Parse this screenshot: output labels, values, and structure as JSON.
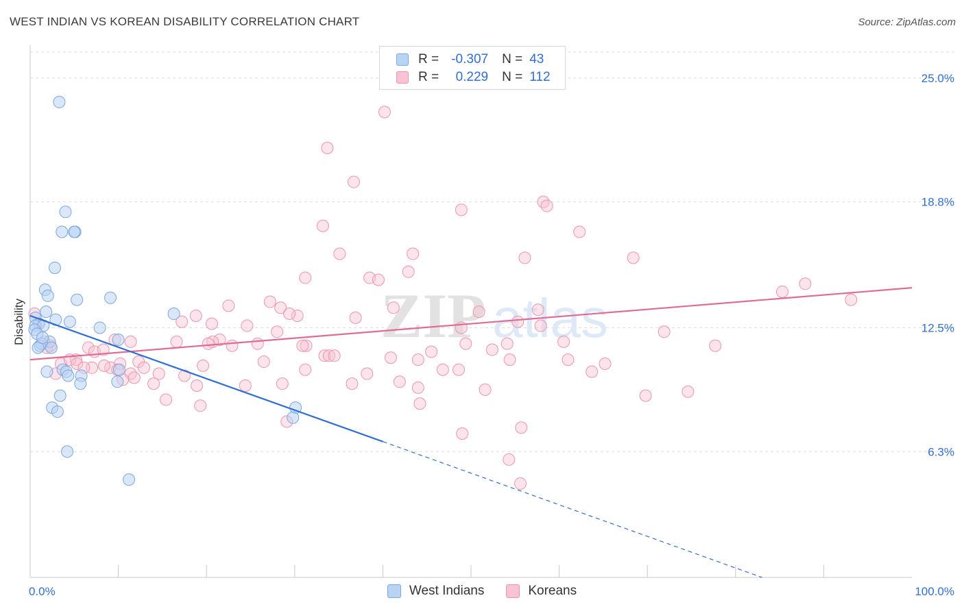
{
  "title": "WEST INDIAN VS KOREAN DISABILITY CORRELATION CHART",
  "source": "Source: ZipAtlas.com",
  "watermark": {
    "zip": "ZIP",
    "atlas": "atlas"
  },
  "legend": {
    "rows": [
      {
        "r_label": "R =",
        "r_value": "-0.307",
        "n_label": "N =",
        "n_value": "43"
      },
      {
        "r_label": "R =",
        "r_value": "0.229",
        "n_label": "N =",
        "n_value": "112"
      }
    ]
  },
  "chart_data": {
    "type": "scatter",
    "title": "WEST INDIAN VS KOREAN DISABILITY CORRELATION CHART",
    "xlabel": "",
    "ylabel": "Disability",
    "xlim": [
      0,
      100
    ],
    "ylim": [
      0,
      26.3
    ],
    "x_tick_labels": [
      "0.0%",
      "100.0%"
    ],
    "y_ticks": [
      6.3,
      12.5,
      18.8,
      25.0
    ],
    "y_tick_labels": [
      "6.3%",
      "12.5%",
      "18.8%",
      "25.0%"
    ],
    "grid": true,
    "legend_position": "bottom-center",
    "colors": {
      "west_indians": "#7aa7e0",
      "koreans": "#ee94b1",
      "west_indians_line": "#2f6fd0",
      "koreans_line": "#e06c95",
      "tick_label": "#2f6fd0"
    },
    "series": [
      {
        "name": "West Indians",
        "r": -0.307,
        "n": 43,
        "trend": {
          "x0": 0,
          "y0": 13.1,
          "x1": 40,
          "y1": 6.8,
          "dashed_to": {
            "x": 83,
            "y": 0
          }
        },
        "points": [
          [
            3.3,
            23.8
          ],
          [
            4.0,
            18.3
          ],
          [
            5.1,
            17.3
          ],
          [
            5.0,
            17.3
          ],
          [
            3.6,
            17.3
          ],
          [
            2.8,
            15.5
          ],
          [
            1.7,
            14.4
          ],
          [
            2.0,
            14.1
          ],
          [
            5.3,
            13.9
          ],
          [
            9.1,
            14.0
          ],
          [
            1.8,
            13.3
          ],
          [
            16.3,
            13.2
          ],
          [
            0.6,
            13.0
          ],
          [
            2.9,
            12.9
          ],
          [
            4.5,
            12.8
          ],
          [
            1.0,
            12.7
          ],
          [
            0.6,
            12.6
          ],
          [
            1.5,
            12.6
          ],
          [
            0.5,
            12.4
          ],
          [
            0.8,
            12.2
          ],
          [
            7.9,
            12.5
          ],
          [
            10.0,
            11.9
          ],
          [
            2.2,
            11.8
          ],
          [
            1.1,
            11.6
          ],
          [
            1.3,
            11.7
          ],
          [
            0.9,
            11.5
          ],
          [
            2.4,
            11.5
          ],
          [
            3.7,
            10.4
          ],
          [
            4.1,
            10.3
          ],
          [
            1.9,
            10.3
          ],
          [
            4.3,
            10.1
          ],
          [
            5.8,
            10.1
          ],
          [
            10.1,
            10.4
          ],
          [
            5.7,
            9.7
          ],
          [
            9.9,
            9.8
          ],
          [
            3.4,
            9.1
          ],
          [
            2.5,
            8.5
          ],
          [
            3.1,
            8.3
          ],
          [
            30.1,
            8.5
          ],
          [
            29.8,
            8.0
          ],
          [
            4.2,
            6.3
          ],
          [
            11.2,
            4.9
          ],
          [
            1.4,
            12.0
          ]
        ]
      },
      {
        "name": "Koreans",
        "r": 0.229,
        "n": 112,
        "trend": {
          "x0": 0,
          "y0": 10.9,
          "x1": 100,
          "y1": 14.5
        },
        "points": [
          [
            40.2,
            23.3
          ],
          [
            33.7,
            21.5
          ],
          [
            36.7,
            19.8
          ],
          [
            48.9,
            18.4
          ],
          [
            58.2,
            18.8
          ],
          [
            58.6,
            18.6
          ],
          [
            33.2,
            17.6
          ],
          [
            62.3,
            17.3
          ],
          [
            35.1,
            16.2
          ],
          [
            43.4,
            16.2
          ],
          [
            68.4,
            16.0
          ],
          [
            56.1,
            16.0
          ],
          [
            42.9,
            15.3
          ],
          [
            31.2,
            15.0
          ],
          [
            38.5,
            15.0
          ],
          [
            39.5,
            14.9
          ],
          [
            87.9,
            14.7
          ],
          [
            85.3,
            14.3
          ],
          [
            93.1,
            13.9
          ],
          [
            27.2,
            13.8
          ],
          [
            22.5,
            13.6
          ],
          [
            28.4,
            13.5
          ],
          [
            41.2,
            13.5
          ],
          [
            57.6,
            13.4
          ],
          [
            50.9,
            13.3
          ],
          [
            30.3,
            13.1
          ],
          [
            29.4,
            13.2
          ],
          [
            18.8,
            13.1
          ],
          [
            36.9,
            13.0
          ],
          [
            55.3,
            12.8
          ],
          [
            20.6,
            12.7
          ],
          [
            17.2,
            12.8
          ],
          [
            48.9,
            12.5
          ],
          [
            24.6,
            12.6
          ],
          [
            28.0,
            12.3
          ],
          [
            57.9,
            12.6
          ],
          [
            71.9,
            12.3
          ],
          [
            21.5,
            11.9
          ],
          [
            11.4,
            11.8
          ],
          [
            16.6,
            11.8
          ],
          [
            20.7,
            11.8
          ],
          [
            25.8,
            11.7
          ],
          [
            31.3,
            11.6
          ],
          [
            54.1,
            11.7
          ],
          [
            60.5,
            11.8
          ],
          [
            49.4,
            11.7
          ],
          [
            9.6,
            11.9
          ],
          [
            20.2,
            11.7
          ],
          [
            77.7,
            11.6
          ],
          [
            30.9,
            11.6
          ],
          [
            22.9,
            11.6
          ],
          [
            1.6,
            11.8
          ],
          [
            2.3,
            11.6
          ],
          [
            1.9,
            11.5
          ],
          [
            6.6,
            11.5
          ],
          [
            7.3,
            11.3
          ],
          [
            8.3,
            11.4
          ],
          [
            52.4,
            11.4
          ],
          [
            33.4,
            11.1
          ],
          [
            33.9,
            11.1
          ],
          [
            34.5,
            11.1
          ],
          [
            40.9,
            11.0
          ],
          [
            44.0,
            10.9
          ],
          [
            54.4,
            10.9
          ],
          [
            61.0,
            10.9
          ],
          [
            1.0,
            12.7
          ],
          [
            10.2,
            10.7
          ],
          [
            26.5,
            10.8
          ],
          [
            5.2,
            10.9
          ],
          [
            7.0,
            10.5
          ],
          [
            9.1,
            10.5
          ],
          [
            9.9,
            10.4
          ],
          [
            31.2,
            10.4
          ],
          [
            48.6,
            10.4
          ],
          [
            63.7,
            10.3
          ],
          [
            11.4,
            10.2
          ],
          [
            14.6,
            10.2
          ],
          [
            11.8,
            10.0
          ],
          [
            10.5,
            9.9
          ],
          [
            14.0,
            9.7
          ],
          [
            17.5,
            10.1
          ],
          [
            2.9,
            10.2
          ],
          [
            28.6,
            9.7
          ],
          [
            41.9,
            9.8
          ],
          [
            44.0,
            9.5
          ],
          [
            51.6,
            9.4
          ],
          [
            3.5,
            10.7
          ],
          [
            4.5,
            10.9
          ],
          [
            12.3,
            10.8
          ],
          [
            19.6,
            10.6
          ],
          [
            5.3,
            10.7
          ],
          [
            6.1,
            10.5
          ],
          [
            69.8,
            9.1
          ],
          [
            74.6,
            9.3
          ],
          [
            8.4,
            10.6
          ],
          [
            12.9,
            10.5
          ],
          [
            55.7,
            7.5
          ],
          [
            19.3,
            8.6
          ],
          [
            29.1,
            7.8
          ],
          [
            44.2,
            8.7
          ],
          [
            49.0,
            7.2
          ],
          [
            54.3,
            5.9
          ],
          [
            55.6,
            4.7
          ],
          [
            15.4,
            8.9
          ],
          [
            18.9,
            9.6
          ],
          [
            24.4,
            9.6
          ],
          [
            36.5,
            9.7
          ],
          [
            38.2,
            10.2
          ],
          [
            45.5,
            11.3
          ],
          [
            46.8,
            10.4
          ],
          [
            0.5,
            13.2
          ],
          [
            65.2,
            10.7
          ]
        ]
      }
    ]
  },
  "bottom_legend": [
    {
      "label": "West Indians"
    },
    {
      "label": "Koreans"
    }
  ]
}
